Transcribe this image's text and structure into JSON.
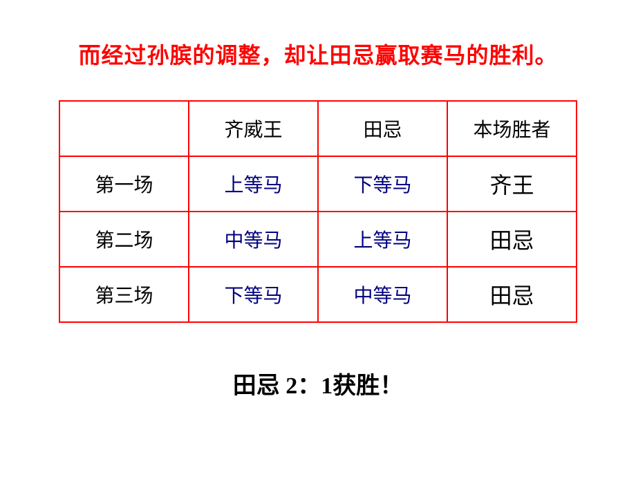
{
  "title": {
    "text": "而经过孙膑的调整，却让田忌赢取赛马的胜利。",
    "color": "#ff0000",
    "fontsize": 32
  },
  "table": {
    "border_color": "#ff0000",
    "header": {
      "cells": [
        "",
        "齐威王",
        "田忌",
        "本场胜者"
      ],
      "text_color": "#000000",
      "fontsize": 28
    },
    "rows": [
      {
        "label": "第一场",
        "qi": "上等马",
        "tian": "下等马",
        "winner": "齐王"
      },
      {
        "label": "第二场",
        "qi": "中等马",
        "tian": "上等马",
        "winner": "田忌"
      },
      {
        "label": "第三场",
        "qi": "下等马",
        "tian": "中等马",
        "winner": "田忌"
      }
    ],
    "horse_color": "#000080",
    "winner_color": "#000000",
    "winner_fontsize": 32
  },
  "result": {
    "text": "田忌 2：1获胜！",
    "color": "#000000",
    "fontsize": 34
  }
}
